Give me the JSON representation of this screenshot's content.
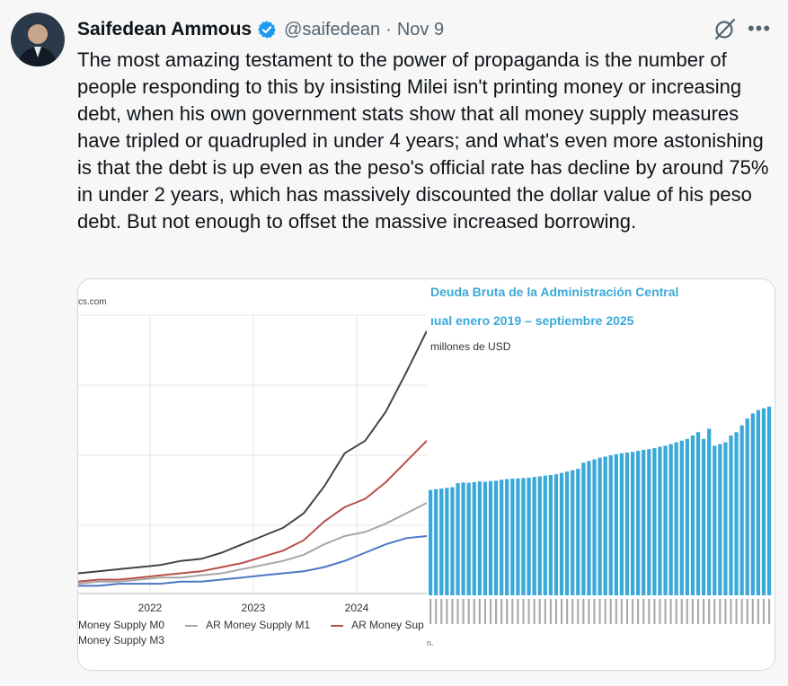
{
  "tweet": {
    "author_name": "Saifedean Ammous",
    "handle": "@saifedean",
    "separator": "·",
    "date": "Nov 9",
    "text": "The most amazing testament to the power of propaganda is the number of people responding to this by insisting Milei isn't printing money or increasing debt, when his own government stats show that all money supply measures have tripled or quadrupled in under 4 years; and what's even more astonishing is that the debt is up even as the peso's official rate has decline by around 75% in under 2 years, which has massively discounted the dollar value of his peso debt. But not enough to offset the massive increased borrowing.",
    "more_label": "•••",
    "icons": {
      "verified": "verified-badge-icon",
      "grok": "grok-icon",
      "more": "more-icon"
    },
    "colors": {
      "verified": "#1d9bf0",
      "text": "#0f1419",
      "muted": "#536471"
    }
  },
  "media": {
    "left_chart": {
      "watermark": "cs.com",
      "legend": [
        {
          "label": "Money Supply M0",
          "color": "#4a78c4"
        },
        {
          "label": "AR Money Supply M1",
          "color": "#a7a7a7"
        },
        {
          "label": "AR Money Sup",
          "color": "#b8504c"
        },
        {
          "label": "Money Supply M3",
          "color": "#444444"
        }
      ]
    },
    "right_chart": {
      "title_line1": "Deuda Bruta de la Administración Central",
      "title_line2": "ıual enero 2019 – septiembre 2025",
      "unit": "millones de USD",
      "footnote": "n.",
      "bar_color": "#3aa9d8"
    }
  },
  "chart_data": [
    {
      "type": "line",
      "title": "",
      "x_ticks": [
        "2022",
        "2023",
        "2024"
      ],
      "series": [
        {
          "name": "Money Supply M0",
          "color": "#4a78c4",
          "values": [
            0.02,
            0.02,
            0.03,
            0.03,
            0.03,
            0.04,
            0.04,
            0.05,
            0.06,
            0.07,
            0.08,
            0.09,
            0.11,
            0.14,
            0.18,
            0.22,
            0.25,
            0.26
          ]
        },
        {
          "name": "AR Money Supply M1",
          "color": "#a7a7a7",
          "values": [
            0.03,
            0.04,
            0.04,
            0.05,
            0.06,
            0.06,
            0.07,
            0.08,
            0.1,
            0.12,
            0.14,
            0.17,
            0.22,
            0.26,
            0.28,
            0.32,
            0.37,
            0.42
          ]
        },
        {
          "name": "AR Money Sup",
          "color": "#b8504c",
          "values": [
            0.04,
            0.05,
            0.05,
            0.06,
            0.07,
            0.08,
            0.09,
            0.11,
            0.13,
            0.16,
            0.19,
            0.24,
            0.33,
            0.4,
            0.44,
            0.52,
            0.62,
            0.72
          ]
        },
        {
          "name": "Money Supply M3",
          "color": "#444444",
          "values": [
            0.08,
            0.09,
            0.1,
            0.11,
            0.12,
            0.14,
            0.15,
            0.18,
            0.22,
            0.26,
            0.3,
            0.37,
            0.5,
            0.66,
            0.72,
            0.86,
            1.05,
            1.25
          ]
        }
      ]
    },
    {
      "type": "bar",
      "title": "Deuda Bruta de la Administración Central",
      "ylabel": "millones de USD",
      "values": [
        310,
        312,
        314,
        316,
        318,
        330,
        332,
        331,
        333,
        335,
        334,
        336,
        337,
        340,
        342,
        343,
        344,
        345,
        346,
        348,
        350,
        352,
        354,
        356,
        360,
        364,
        368,
        372,
        390,
        395,
        400,
        405,
        408,
        412,
        415,
        418,
        420,
        422,
        425,
        428,
        430,
        433,
        437,
        440,
        445,
        450,
        455,
        460,
        470,
        480,
        460,
        490,
        440,
        445,
        450,
        470,
        480,
        500,
        520,
        535,
        545,
        550,
        555
      ]
    }
  ]
}
